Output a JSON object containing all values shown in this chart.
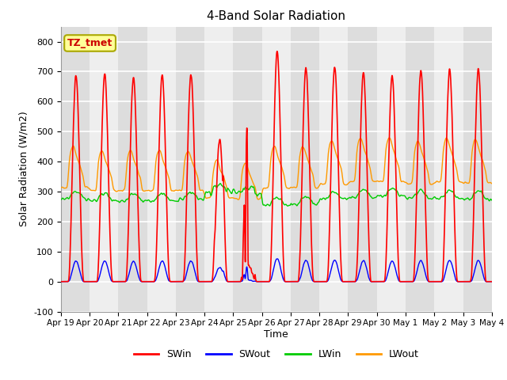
{
  "title": "4-Band Solar Radiation",
  "xlabel": "Time",
  "ylabel": "Solar Radiation (W/m2)",
  "ylim": [
    -100,
    850
  ],
  "yticks": [
    -100,
    0,
    100,
    200,
    300,
    400,
    500,
    600,
    700,
    800
  ],
  "legend_labels": [
    "SWin",
    "SWout",
    "LWin",
    "LWout"
  ],
  "legend_colors": [
    "red",
    "blue",
    "green",
    "orange"
  ],
  "annotation_text": "TZ_tmet",
  "annotation_bg": "#ffff99",
  "annotation_edge": "#aaa800",
  "annotation_text_color": "#cc0000",
  "xtick_labels": [
    "Apr 19",
    "Apr 20",
    "Apr 21",
    "Apr 22",
    "Apr 23",
    "Apr 24",
    "Apr 25",
    "Apr 26",
    "Apr 27",
    "Apr 28",
    "Apr 29",
    "Apr 30",
    "May 1",
    "May 2",
    "May 3",
    "May 4"
  ],
  "background_color": "#ffffff",
  "band_color_dark": "#dddddd",
  "band_color_light": "#eeeeee",
  "grid_color": "#ffffff",
  "SWin_color": "#ff0000",
  "SWout_color": "#0000ff",
  "LWin_color": "#00cc00",
  "LWout_color": "#ff9900"
}
